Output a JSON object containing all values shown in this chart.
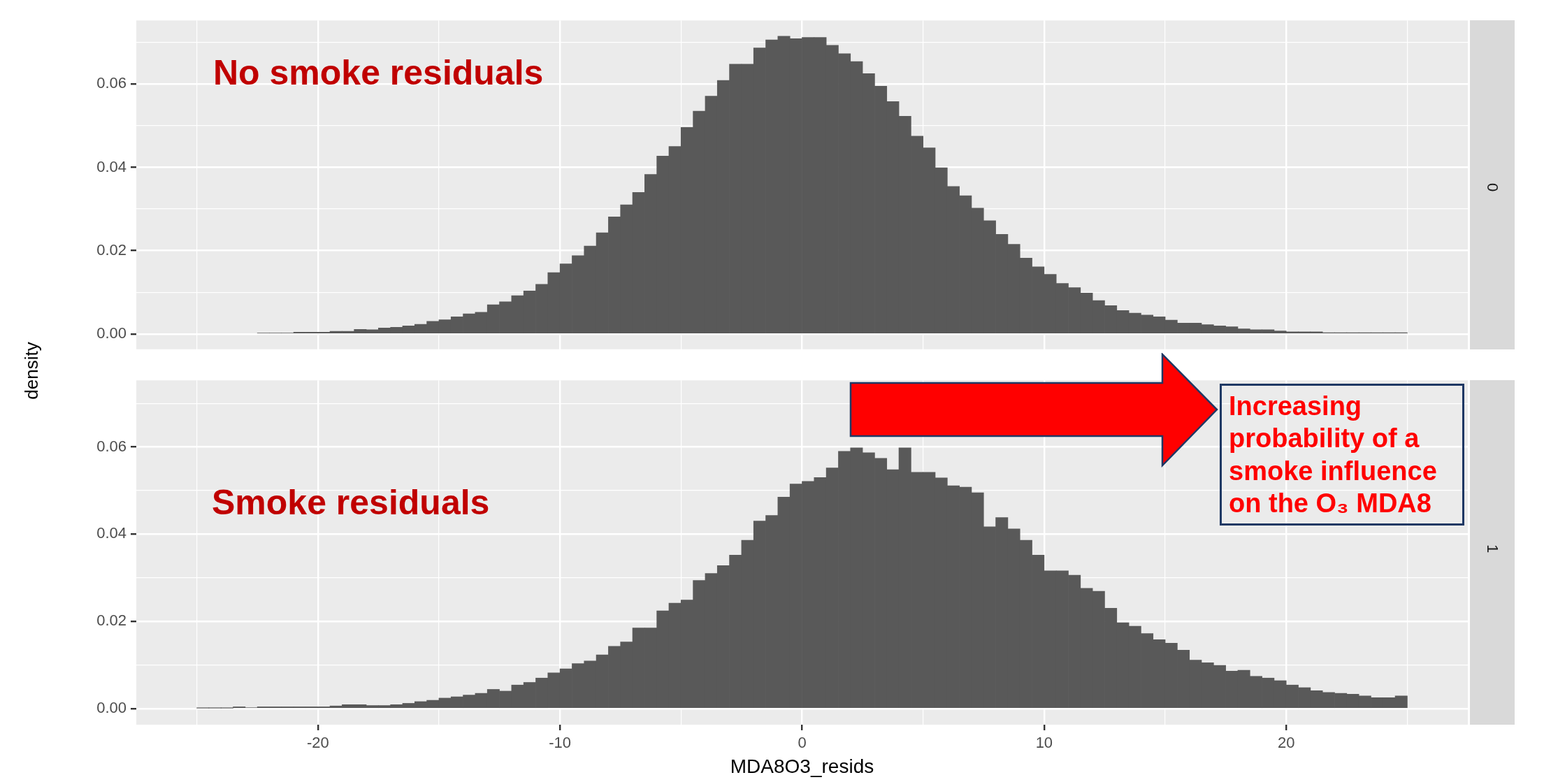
{
  "chart_data": [
    {
      "type": "histogram",
      "ylabel": "density",
      "color": "#595959",
      "grid": true,
      "tick_labels": "y",
      "bins": [
        -22.5,
        -22,
        -21.5,
        -21,
        -20.5,
        -20,
        -19.5,
        -19,
        -18.5,
        -18,
        -17.5,
        -17,
        -16.5,
        -16,
        -15.5,
        -15,
        -14.5,
        -14,
        -13.5,
        -13,
        -12.5,
        -12,
        -11.5,
        -11,
        -10.5,
        -10,
        -9.5,
        -9,
        -8.5,
        -8,
        -7.5,
        -7,
        -6.5,
        -6,
        -5.5,
        -5,
        -4.5,
        -4,
        -3.5,
        -3,
        -2.5,
        -2,
        -1.5,
        -1,
        -0.5,
        0,
        0.5,
        1,
        1.5,
        2,
        2.5,
        3,
        3.5,
        4,
        4.5,
        5,
        5.5,
        6,
        6.5,
        7,
        7.5,
        8,
        8.5,
        9,
        9.5,
        10,
        10.5,
        11,
        11.5,
        12,
        12.5,
        13,
        13.5,
        14,
        14.5,
        15,
        15.5,
        16,
        16.5,
        17,
        17.5,
        18,
        18.5,
        19,
        19.5,
        20,
        20.5,
        21,
        21.5,
        22,
        22.5,
        23,
        23.5,
        24,
        24.5,
        25
      ],
      "values": [
        0.0002,
        0.0002,
        0.0002,
        0.0004,
        0.0004,
        0.0004,
        0.0006,
        0.0006,
        0.0011,
        0.001,
        0.0014,
        0.0016,
        0.0019,
        0.0023,
        0.003,
        0.0034,
        0.0041,
        0.0048,
        0.0052,
        0.007,
        0.0077,
        0.0092,
        0.0103,
        0.0119,
        0.0147,
        0.0168,
        0.0188,
        0.0211,
        0.0243,
        0.0281,
        0.031,
        0.034,
        0.0383,
        0.0427,
        0.045,
        0.0496,
        0.0535,
        0.0571,
        0.0609,
        0.0648,
        0.0648,
        0.0687,
        0.0706,
        0.0715,
        0.0709,
        0.0712,
        0.0712,
        0.0693,
        0.0673,
        0.0654,
        0.0625,
        0.0595,
        0.0558,
        0.0523,
        0.0475,
        0.0447,
        0.0399,
        0.0354,
        0.0332,
        0.0302,
        0.0272,
        0.0239,
        0.0215,
        0.0182,
        0.0161,
        0.0143,
        0.0121,
        0.0111,
        0.0098,
        0.008,
        0.0068,
        0.0056,
        0.005,
        0.0045,
        0.0041,
        0.0033,
        0.0026,
        0.0026,
        0.0022,
        0.0019,
        0.0017,
        0.0012,
        0.001,
        0.001,
        0.0007,
        0.0005,
        0.0005,
        0.0005,
        0.0003,
        0.0003,
        0.0003,
        0.0003,
        0.0003,
        0.0003,
        0.0003
      ],
      "xlim": [
        -27.5,
        27.5
      ],
      "ylim": [
        -0.0037,
        0.0753
      ],
      "xticks": [
        {
          "value": -25,
          "label": null
        },
        -20,
        {
          "value": -15,
          "label": null
        },
        -10,
        {
          "value": -5,
          "label": null
        },
        0,
        {
          "value": 5,
          "label": null
        },
        10,
        {
          "value": 15,
          "label": null
        },
        20,
        {
          "value": 25,
          "label": null
        }
      ],
      "yticks": [
        {
          "value": 0,
          "label": "0.00"
        },
        {
          "value": 0.01,
          "label": null
        },
        {
          "value": 0.02,
          "label": "0.02"
        },
        {
          "value": 0.03,
          "label": null
        },
        {
          "value": 0.04,
          "label": "0.04"
        },
        {
          "value": 0.05,
          "label": null
        },
        {
          "value": 0.06,
          "label": "0.06"
        },
        {
          "value": 0.07,
          "label": null
        }
      ],
      "annotations": [
        "No smoke residuals",
        "0"
      ]
    },
    {
      "type": "histogram",
      "xlabel": "MDA8O3_resids",
      "color": "#595959",
      "grid": true,
      "bins": [
        -25,
        -24.5,
        -24,
        -23.5,
        -23,
        -22.5,
        -22,
        -21.5,
        -21,
        -20.5,
        -20,
        -19.5,
        -19,
        -18.5,
        -18,
        -17.5,
        -17,
        -16.5,
        -16,
        -15.5,
        -15,
        -14.5,
        -14,
        -13.5,
        -13,
        -12.5,
        -12,
        -11.5,
        -11,
        -10.5,
        -10,
        -9.5,
        -9,
        -8.5,
        -8,
        -7.5,
        -7,
        -6.5,
        -6,
        -5.5,
        -5,
        -4.5,
        -4,
        -3.5,
        -3,
        -2.5,
        -2,
        -1.5,
        -1,
        -0.5,
        0,
        0.5,
        1,
        1.5,
        2,
        2.5,
        3,
        3.5,
        4,
        4.5,
        5,
        5.5,
        6,
        6.5,
        7,
        7.5,
        8,
        8.5,
        9,
        9.5,
        10,
        10.5,
        11,
        11.5,
        12,
        12.5,
        13,
        13.5,
        14,
        14.5,
        15,
        15.5,
        16,
        16.5,
        17,
        17.5,
        18,
        18.5,
        19,
        19.5,
        20,
        20.5,
        21,
        21.5,
        22,
        22.5,
        23,
        23.5,
        24,
        24.5,
        25
      ],
      "values": [
        0.0001,
        0.0001,
        0.0001,
        0.0004,
        0.0002,
        0.0004,
        0.0004,
        0.0004,
        0.0004,
        0.0004,
        0.0004,
        0.0006,
        0.0009,
        0.0009,
        0.0007,
        0.0007,
        0.0009,
        0.0012,
        0.0016,
        0.0019,
        0.0024,
        0.0027,
        0.0031,
        0.0035,
        0.0044,
        0.004,
        0.0054,
        0.006,
        0.007,
        0.0082,
        0.0091,
        0.0103,
        0.0109,
        0.0123,
        0.0143,
        0.0153,
        0.0185,
        0.0185,
        0.0224,
        0.0242,
        0.0249,
        0.0294,
        0.031,
        0.0328,
        0.0352,
        0.0386,
        0.043,
        0.0443,
        0.0485,
        0.0515,
        0.0521,
        0.053,
        0.0552,
        0.059,
        0.0598,
        0.0587,
        0.0574,
        0.0548,
        0.0598,
        0.0542,
        0.0542,
        0.0529,
        0.0511,
        0.0508,
        0.0495,
        0.0417,
        0.0438,
        0.0412,
        0.0386,
        0.0352,
        0.0316,
        0.0316,
        0.0306,
        0.0276,
        0.0269,
        0.023,
        0.0197,
        0.0189,
        0.0172,
        0.0158,
        0.015,
        0.0134,
        0.0111,
        0.0105,
        0.0099,
        0.0086,
        0.0088,
        0.0074,
        0.007,
        0.0064,
        0.0054,
        0.0048,
        0.0041,
        0.0037,
        0.0035,
        0.0033,
        0.0029,
        0.0025,
        0.0025,
        0.0029
      ],
      "xlim": [
        -27.5,
        27.5
      ],
      "ylim": [
        -0.0037,
        0.0753
      ],
      "xticks": [
        {
          "value": -25,
          "label": null
        },
        -20,
        {
          "value": -15,
          "label": null
        },
        -10,
        {
          "value": -5,
          "label": null
        },
        0,
        {
          "value": 5,
          "label": null
        },
        10,
        {
          "value": 15,
          "label": null
        },
        20,
        {
          "value": 25,
          "label": null
        }
      ],
      "yticks": [
        {
          "value": 0,
          "label": "0.00"
        },
        {
          "value": 0.01,
          "label": null
        },
        {
          "value": 0.02,
          "label": "0.02"
        },
        {
          "value": 0.03,
          "label": null
        },
        {
          "value": 0.04,
          "label": "0.04"
        },
        {
          "value": 0.05,
          "label": null
        },
        {
          "value": 0.06,
          "label": "0.06"
        },
        {
          "value": 0.07,
          "label": null
        }
      ],
      "annotations": [
        "Smoke residuals",
        "1",
        "Increasing probability of a smoke influence on the O₃ MDA8"
      ]
    }
  ]
}
